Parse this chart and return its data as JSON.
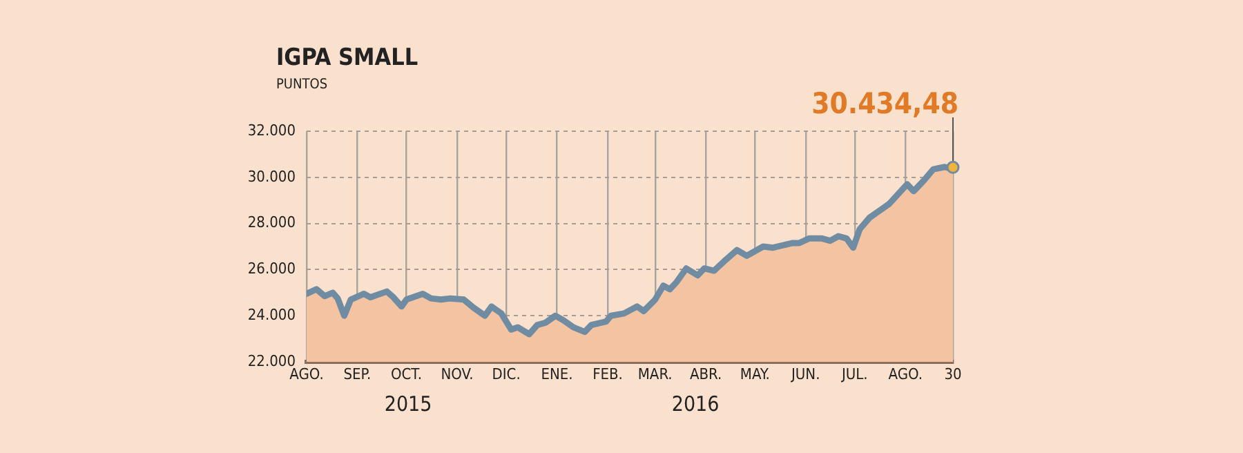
{
  "chart_data": {
    "type": "area",
    "title": "IGPA SMALL",
    "ylabel": "PUNTOS",
    "x": [
      "2015-08-01",
      "2015-08-07",
      "2015-08-12",
      "2015-08-17",
      "2015-08-20",
      "2015-08-24",
      "2015-08-28",
      "2015-09-05",
      "2015-09-09",
      "2015-09-19",
      "2015-09-23",
      "2015-09-28",
      "2015-10-01",
      "2015-10-11",
      "2015-10-16",
      "2015-10-22",
      "2015-10-28",
      "2015-11-05",
      "2015-11-11",
      "2015-11-18",
      "2015-11-22",
      "2015-11-28",
      "2015-12-04",
      "2015-12-08",
      "2015-12-15",
      "2015-12-20",
      "2015-12-25",
      "2015-12-31",
      "2016-01-05",
      "2016-01-11",
      "2016-01-18",
      "2016-01-22",
      "2016-01-31",
      "2016-02-03",
      "2016-02-11",
      "2016-02-19",
      "2016-02-23",
      "2016-03-01",
      "2016-03-06",
      "2016-03-10",
      "2016-03-14",
      "2016-03-20",
      "2016-03-27",
      "2016-03-31",
      "2016-04-06",
      "2016-04-12",
      "2016-04-20",
      "2016-04-26",
      "2016-05-06",
      "2016-05-12",
      "2016-05-24",
      "2016-05-28",
      "2016-06-03",
      "2016-06-11",
      "2016-06-16",
      "2016-06-21",
      "2016-06-26",
      "2016-06-30",
      "2016-07-04",
      "2016-07-10",
      "2016-07-17",
      "2016-07-22",
      "2016-08-02",
      "2016-08-06",
      "2016-08-12",
      "2016-08-18",
      "2016-08-25",
      "2016-08-28",
      "2016-08-30"
    ],
    "series": [
      {
        "color": "#f3c3a2",
        "values": [
          24950,
          25150,
          24850,
          25000,
          24750,
          24000,
          24700,
          24950,
          24800,
          25050,
          24800,
          24400,
          24700,
          24950,
          24750,
          24700,
          24750,
          24700,
          24350,
          24000,
          24400,
          24100,
          23400,
          23500,
          23200,
          23600,
          23700,
          24000,
          23800,
          23500,
          23300,
          23600,
          23750,
          24000,
          24100,
          24400,
          24200,
          24700,
          25300,
          25150,
          25450,
          26050,
          25750,
          26050,
          25950,
          26350,
          26850,
          26600,
          27000,
          26950,
          27150,
          27150,
          27350,
          27350,
          27250,
          27450,
          27350,
          26950,
          27750,
          28250,
          28600,
          28850,
          29700,
          29400,
          29850,
          30350,
          30450,
          30400,
          30434.48
        ]
      },
      {
        "type": "line",
        "color": "#6f8ca2",
        "values": [
          24950,
          25150,
          24850,
          25000,
          24750,
          24000,
          24700,
          24950,
          24800,
          25050,
          24800,
          24400,
          24700,
          24950,
          24750,
          24700,
          24750,
          24700,
          24350,
          24000,
          24400,
          24100,
          23400,
          23500,
          23200,
          23600,
          23700,
          24000,
          23800,
          23500,
          23300,
          23600,
          23750,
          24000,
          24100,
          24400,
          24200,
          24700,
          25300,
          25150,
          25450,
          26050,
          25750,
          26050,
          25950,
          26350,
          26850,
          26600,
          27000,
          26950,
          27150,
          27150,
          27350,
          27350,
          27250,
          27450,
          27350,
          26950,
          27750,
          28250,
          28600,
          28850,
          29700,
          29400,
          29850,
          30350,
          30450,
          30400,
          30434.48
        ]
      }
    ],
    "xlim": [
      "2015-08-01",
      "2016-08-30"
    ],
    "xticks": [
      {
        "value": "2015-08-01",
        "label": "AGO."
      },
      {
        "value": "2015-09-01",
        "label": "SEP."
      },
      {
        "value": "2015-10-01",
        "label": "OCT."
      },
      {
        "value": "2015-11-01",
        "label": "NOV."
      },
      {
        "value": "2015-12-01",
        "label": "DIC."
      },
      {
        "value": "2016-01-01",
        "label": "ENE."
      },
      {
        "value": "2016-02-01",
        "label": "FEB."
      },
      {
        "value": "2016-03-01",
        "label": "MAR."
      },
      {
        "value": "2016-04-01",
        "label": "ABR."
      },
      {
        "value": "2016-05-01",
        "label": "MAY."
      },
      {
        "value": "2016-06-01",
        "label": "JUN."
      },
      {
        "value": "2016-07-01",
        "label": "JUL."
      },
      {
        "value": "2016-08-01",
        "label": "AGO."
      },
      {
        "value": "2016-08-30",
        "label": "30"
      }
    ],
    "ylim": [
      22000,
      32000
    ],
    "yticks": [
      {
        "value": 22000,
        "label": "22.000"
      },
      {
        "value": 24000,
        "label": "24.000"
      },
      {
        "value": 26000,
        "label": "26.000"
      },
      {
        "value": 28000,
        "label": "28.000"
      },
      {
        "value": 30000,
        "label": "30.000"
      },
      {
        "value": 32000,
        "label": "32.000"
      }
    ],
    "grid": true,
    "annotations": [
      "2015",
      "2016",
      {
        "text": "30.434,48",
        "x": "2016-08-30",
        "y": 30434.48
      }
    ]
  }
}
